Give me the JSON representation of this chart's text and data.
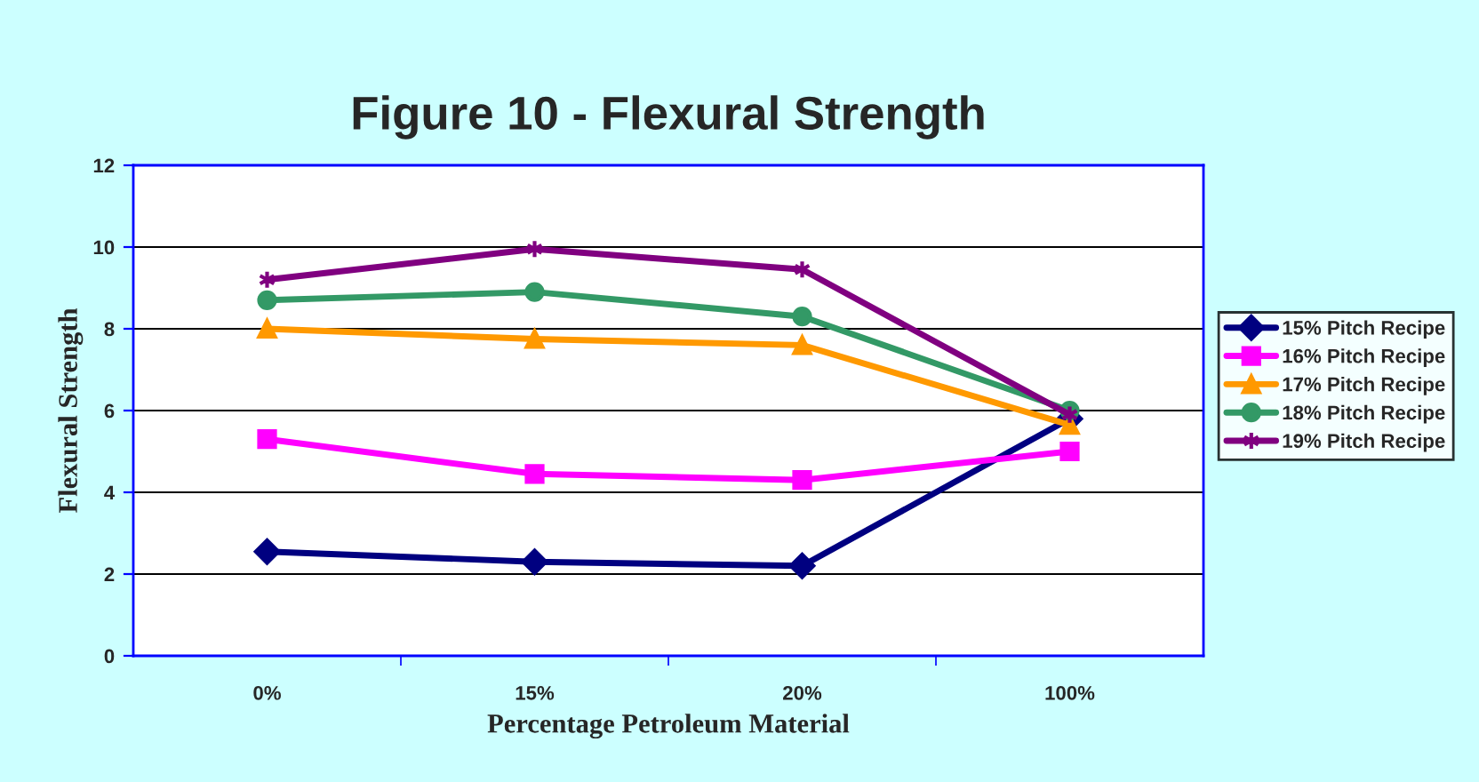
{
  "chart_data": {
    "type": "line",
    "title": "Figure 10 - Flexural Strength",
    "xlabel": "Percentage Petroleum Material",
    "ylabel": "Flexural Strength",
    "categories": [
      "0%",
      "15%",
      "20%",
      "100%"
    ],
    "series": [
      {
        "name": "15% Pitch Recipe",
        "color": "#000080",
        "marker": "diamond",
        "values": [
          2.55,
          2.3,
          2.2,
          5.8
        ]
      },
      {
        "name": "16% Pitch Recipe",
        "color": "#ff00ff",
        "marker": "square",
        "values": [
          5.3,
          4.45,
          4.3,
          5.0
        ]
      },
      {
        "name": "17% Pitch Recipe",
        "color": "#ff9900",
        "marker": "triangle",
        "values": [
          8.0,
          7.75,
          7.6,
          5.65
        ]
      },
      {
        "name": "18% Pitch Recipe",
        "color": "#339966",
        "marker": "circle",
        "values": [
          8.7,
          8.9,
          8.3,
          6.0
        ]
      },
      {
        "name": "19% Pitch Recipe",
        "color": "#800080",
        "marker": "cross",
        "values": [
          9.2,
          9.95,
          9.45,
          5.9
        ]
      }
    ],
    "ylim": [
      0,
      12
    ],
    "yticks": [
      0,
      2,
      4,
      6,
      8,
      10,
      12
    ],
    "grid": "y",
    "legend": "right"
  }
}
